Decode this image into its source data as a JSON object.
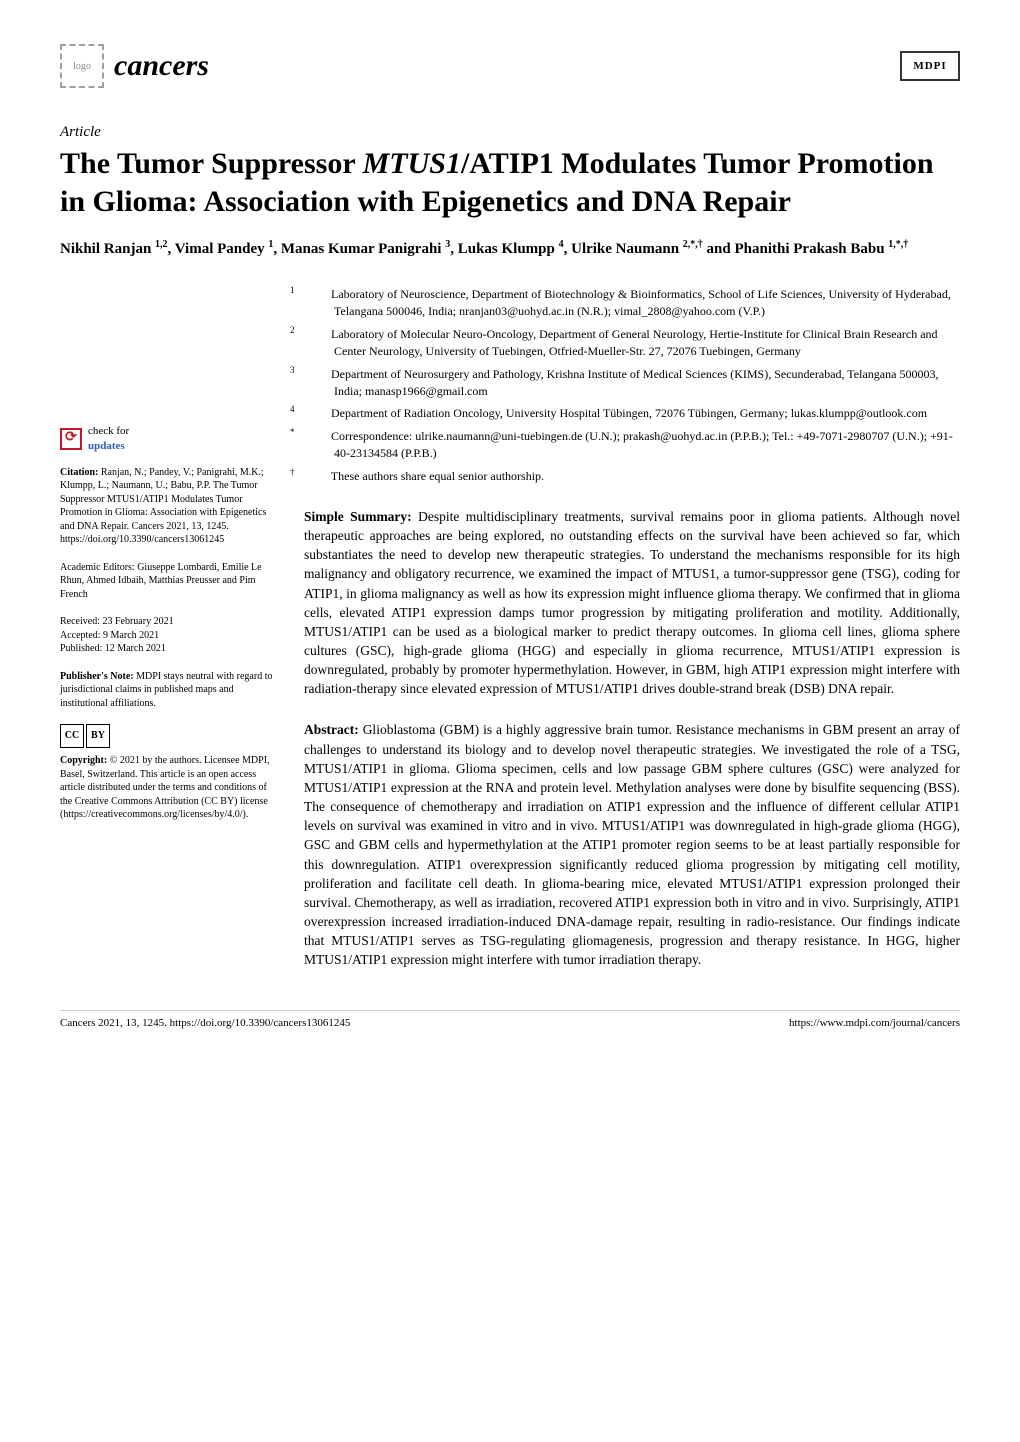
{
  "header": {
    "journal_name": "cancers",
    "publisher_mark": "MDPI"
  },
  "article": {
    "type": "Article",
    "title_pre": "The Tumor Suppressor ",
    "title_gene": "MTUS1",
    "title_post": "/ATIP1 Modulates Tumor Promotion in Glioma: Association with Epigenetics and DNA Repair",
    "authors_html": "Nikhil Ranjan <sup>1,2</sup>, Vimal Pandey <sup>1</sup>, Manas Kumar Panigrahi <sup>3</sup>, Lukas Klumpp <sup>4</sup>, Ulrike Naumann <sup>2,*,†</sup> and Phanithi Prakash Babu <sup>1,*,†</sup>"
  },
  "affiliations": [
    {
      "label": "1",
      "text": "Laboratory of Neuroscience, Department of Biotechnology & Bioinformatics, School of Life Sciences, University of Hyderabad, Telangana 500046, India; nranjan03@uohyd.ac.in (N.R.); vimal_2808@yahoo.com (V.P.)"
    },
    {
      "label": "2",
      "text": "Laboratory of Molecular Neuro-Oncology, Department of General Neurology, Hertie-Institute for Clinical Brain Research and Center Neurology, University of Tuebingen, Otfried-Mueller-Str. 27, 72076 Tuebingen, Germany"
    },
    {
      "label": "3",
      "text": "Department of Neurosurgery and Pathology, Krishna Institute of Medical Sciences (KIMS), Secunderabad, Telangana 500003, India; manasp1966@gmail.com"
    },
    {
      "label": "4",
      "text": "Department of Radiation Oncology, University Hospital Tübingen, 72076 Tübingen, Germany; lukas.klumpp@outlook.com"
    },
    {
      "label": "*",
      "text": "Correspondence: ulrike.naumann@uni-tuebingen.de (U.N.); prakash@uohyd.ac.in (P.P.B.); Tel.: +49-7071-2980707 (U.N.); +91-40-23134584 (P.P.B.)"
    },
    {
      "label": "†",
      "text": "These authors share equal senior authorship."
    }
  ],
  "simple_summary": {
    "lead": "Simple Summary: ",
    "text": "Despite multidisciplinary treatments, survival remains poor in glioma patients. Although novel therapeutic approaches are being explored, no outstanding effects on the survival have been achieved so far, which substantiates the need to develop new therapeutic strategies. To understand the mechanisms responsible for its high malignancy and obligatory recurrence, we examined the impact of MTUS1, a tumor-suppressor gene (TSG), coding for ATIP1, in glioma malignancy as well as how its expression might influence glioma therapy. We confirmed that in glioma cells, elevated ATIP1 expression damps tumor progression by mitigating proliferation and motility. Additionally, MTUS1/ATIP1 can be used as a biological marker to predict therapy outcomes. In glioma cell lines, glioma sphere cultures (GSC), high-grade glioma (HGG) and especially in glioma recurrence, MTUS1/ATIP1 expression is downregulated, probably by promoter hypermethylation. However, in GBM, high ATIP1 expression might interfere with radiation-therapy since elevated expression of MTUS1/ATIP1 drives double-strand break (DSB) DNA repair."
  },
  "abstract": {
    "lead": "Abstract: ",
    "text": "Glioblastoma (GBM) is a highly aggressive brain tumor. Resistance mechanisms in GBM present an array of challenges to understand its biology and to develop novel therapeutic strategies. We investigated the role of a TSG, MTUS1/ATIP1 in glioma. Glioma specimen, cells and low passage GBM sphere cultures (GSC) were analyzed for MTUS1/ATIP1 expression at the RNA and protein level. Methylation analyses were done by bisulfite sequencing (BSS). The consequence of chemotherapy and irradiation on ATIP1 expression and the influence of different cellular ATIP1 levels on survival was examined in vitro and in vivo. MTUS1/ATIP1 was downregulated in high-grade glioma (HGG), GSC and GBM cells and hypermethylation at the ATIP1 promoter region seems to be at least partially responsible for this downregulation. ATIP1 overexpression significantly reduced glioma progression by mitigating cell motility, proliferation and facilitate cell death. In glioma-bearing mice, elevated MTUS1/ATIP1 expression prolonged their survival. Chemotherapy, as well as irradiation, recovered ATIP1 expression both in vitro and in vivo. Surprisingly, ATIP1 overexpression increased irradiation-induced DNA-damage repair, resulting in radio-resistance. Our findings indicate that MTUS1/ATIP1 serves as TSG-regulating gliomagenesis, progression and therapy resistance. In HGG, higher MTUS1/ATIP1 expression might interfere with tumor irradiation therapy."
  },
  "sidebar": {
    "check_updates": {
      "line1": "check for",
      "line2": "updates"
    },
    "citation": {
      "lead": "Citation:",
      "text": " Ranjan, N.; Pandey, V.; Panigrahi, M.K.; Klumpp, L.; Naumann, U.; Babu, P.P. The Tumor Suppressor MTUS1/ATIP1 Modulates Tumor Promotion in Glioma: Association with Epigenetics and DNA Repair. Cancers 2021, 13, 1245. https://doi.org/10.3390/cancers13061245"
    },
    "editors": {
      "text": "Academic Editors: Giuseppe Lombardi, Emilie Le Rhun, Ahmed Idbaih, Matthias Preusser and Pim French"
    },
    "dates": {
      "received": "Received: 23 February 2021",
      "accepted": "Accepted: 9 March 2021",
      "published": "Published: 12 March 2021"
    },
    "publisher_note": {
      "lead": "Publisher's Note:",
      "text": " MDPI stays neutral with regard to jurisdictional claims in published maps and institutional affiliations."
    },
    "copyright": {
      "lead": "Copyright:",
      "text": " © 2021 by the authors. Licensee MDPI, Basel, Switzerland. This article is an open access article distributed under the terms and conditions of the Creative Commons Attribution (CC BY) license (https://creativecommons.org/licenses/by/4.0/)."
    },
    "cc_label_left": "CC",
    "cc_label_right": "BY"
  },
  "footer": {
    "left": "Cancers 2021, 13, 1245. https://doi.org/10.3390/cancers13061245",
    "right": "https://www.mdpi.com/journal/cancers"
  },
  "colors": {
    "text": "#000000",
    "bg": "#ffffff",
    "accent_red": "#c0172b",
    "link_blue": "#2d5db8",
    "orcid_green": "#a6ce39"
  }
}
